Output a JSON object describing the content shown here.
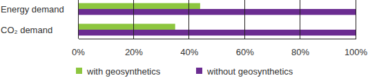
{
  "chart_data": {
    "type": "bar",
    "orientation": "horizontal",
    "categories": [
      "Energy demand",
      "CO₂ demand"
    ],
    "series": [
      {
        "name": "with geosynthetics",
        "color": "#8dc63f",
        "values": [
          44,
          35
        ]
      },
      {
        "name": "without geosynthetics",
        "color": "#6b2c91",
        "values": [
          100,
          100
        ]
      }
    ],
    "xlim": [
      0,
      100
    ],
    "xticks": [
      {
        "value": 0,
        "label": "0%"
      },
      {
        "value": 20,
        "label": "20%"
      },
      {
        "value": 40,
        "label": "40%"
      },
      {
        "value": 60,
        "label": "60%"
      },
      {
        "value": 80,
        "label": "80%"
      },
      {
        "value": 100,
        "label": "100%"
      }
    ],
    "grid": true,
    "legend": "bottom"
  }
}
